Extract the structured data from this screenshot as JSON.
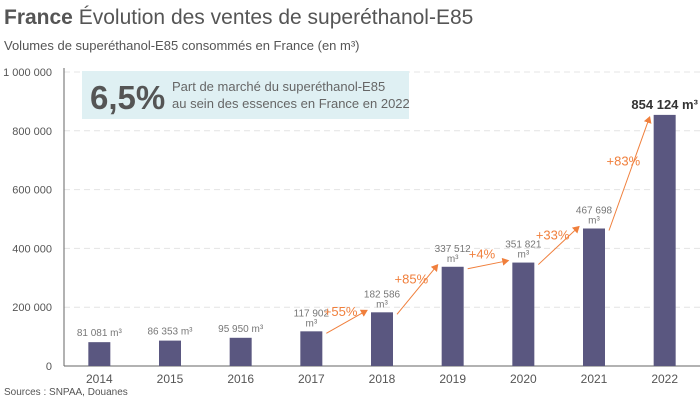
{
  "header": {
    "title_bold": "France",
    "title": "Évolution des ventes de superéthanol-E85",
    "subtitle": "Volumes de superéthanol-E85 consommés en France (en m³)"
  },
  "source": "Sources : SNPAA, Douanes",
  "callout": {
    "value": "6,5%",
    "line1": "Part de marché du superéthanol-E85",
    "line2": "au sein des essences en France en 2022"
  },
  "colors": {
    "bar": "#5a5780",
    "growth": "#f07f3c",
    "callout_bg": "#dff0f3",
    "text": "#555555"
  },
  "chart_data": {
    "type": "bar",
    "categories": [
      "2014",
      "2015",
      "2016",
      "2017",
      "2018",
      "2019",
      "2020",
      "2021",
      "2022"
    ],
    "values": [
      81081,
      86353,
      95950,
      117902,
      182586,
      337512,
      351821,
      467698,
      854124
    ],
    "data_labels": [
      [
        "81 081 m³"
      ],
      [
        "86 353 m³"
      ],
      [
        "95 950 m³"
      ],
      [
        "117 902",
        "m³"
      ],
      [
        "182 586",
        "m³"
      ],
      [
        "337 512",
        "m³"
      ],
      [
        "351 821",
        "m³"
      ],
      [
        "467 698",
        "m³"
      ],
      [
        "854 124 m³"
      ]
    ],
    "growth": [
      {
        "from": "2017",
        "to": "2018",
        "label": "+55%"
      },
      {
        "from": "2018",
        "to": "2019",
        "label": "+85%"
      },
      {
        "from": "2019",
        "to": "2020",
        "label": "+4%"
      },
      {
        "from": "2020",
        "to": "2021",
        "label": "+33%"
      },
      {
        "from": "2021",
        "to": "2022",
        "label": "+83%"
      }
    ],
    "ylim": [
      0,
      1000000
    ],
    "yticks": [
      0,
      200000,
      400000,
      600000,
      800000,
      1000000
    ],
    "ytick_labels": [
      "0",
      "200 000",
      "400 000",
      "600 000",
      "800 000",
      "1 000 000"
    ],
    "grid": true,
    "xlabel": "",
    "ylabel": ""
  }
}
